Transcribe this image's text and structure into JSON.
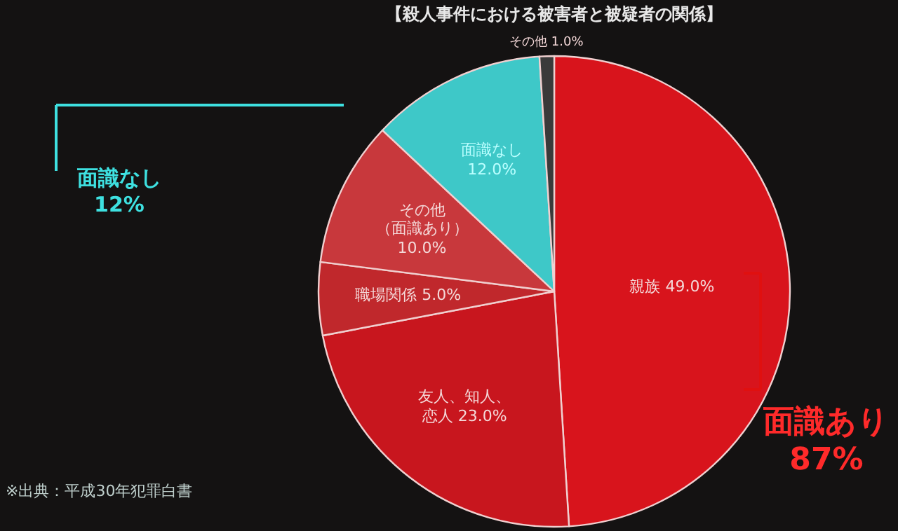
{
  "chart_data": {
    "type": "pie",
    "title": "【殺人事件における被害者と被疑者の関係】",
    "categories": [
      "親族",
      "友人、知人、恋人",
      "職場関係",
      "その他（面識あり）",
      "面識なし",
      "その他"
    ],
    "values": [
      49,
      23,
      5,
      10,
      12,
      1
    ],
    "value_labels": [
      "49.0%",
      "23.0%",
      "5.0%",
      "10.0%",
      "12.0%",
      "1.0%"
    ],
    "colors": [
      "#d8141c",
      "#c8161e",
      "#c0282c",
      "#c8383c",
      "#3ec8c8",
      "#3a3a3a"
    ],
    "annotations": [
      "面識なし 12%",
      "面識あり 87%",
      "※出典：平成30年犯罪白書"
    ]
  }
}
